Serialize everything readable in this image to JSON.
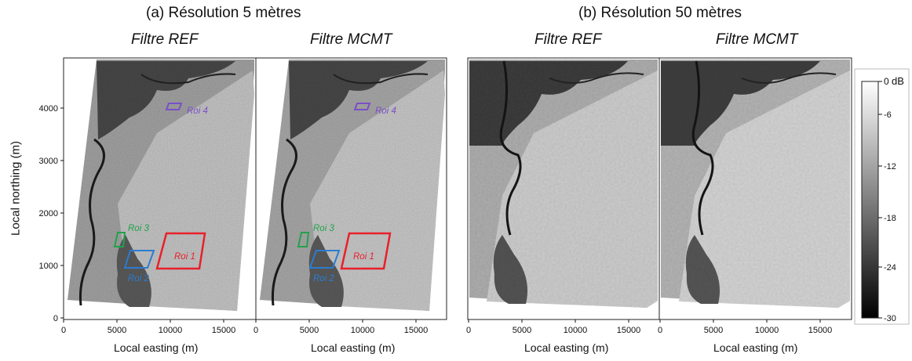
{
  "groups": [
    {
      "title": "(a) Résolution 5 mètres",
      "panels": [
        "Filtre REF",
        "Filtre MCMT"
      ]
    },
    {
      "title": "(b) Résolution 50 mètres",
      "panels": [
        "Filtre REF",
        "Filtre MCMT"
      ]
    }
  ],
  "axes": {
    "ylabel": "Local northing (m)",
    "xlabel": "Local easting (m)",
    "y_ticks": [
      "0",
      "1000",
      "2000",
      "3000",
      "4000"
    ],
    "x_ticks": [
      "0",
      "5000",
      "10000",
      "15000"
    ]
  },
  "colorbar": {
    "unit": "dB",
    "top_label": "0",
    "ticks": [
      "-6",
      "-12",
      "-18",
      "-24",
      "-30"
    ]
  },
  "rois": [
    {
      "label": "Roi 1",
      "color": "#e8202a"
    },
    {
      "label": "Roi 2",
      "color": "#2b7cd1"
    },
    {
      "label": "Roi 3",
      "color": "#1fa34a"
    },
    {
      "label": "Roi 4",
      "color": "#7b4fc8"
    }
  ]
}
